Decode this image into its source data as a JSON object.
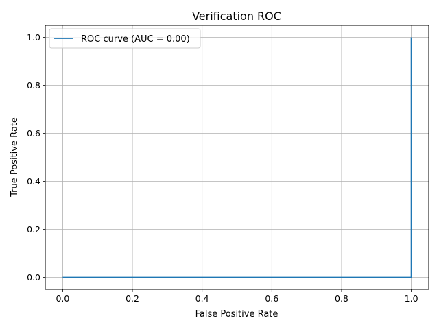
{
  "chart_data": {
    "type": "line",
    "title": "Verification ROC",
    "xlabel": "False Positive Rate",
    "ylabel": "True Positive Rate",
    "xlim": [
      -0.05,
      1.05
    ],
    "ylim": [
      -0.05,
      1.05
    ],
    "xticks": [
      "0.0",
      "0.2",
      "0.4",
      "0.6",
      "0.8",
      "1.0"
    ],
    "yticks": [
      "0.0",
      "0.2",
      "0.4",
      "0.6",
      "0.8",
      "1.0"
    ],
    "grid": true,
    "legend_position": "upper-left",
    "series": [
      {
        "name": "ROC curve (AUC = 0.00)",
        "color": "#1f77b4",
        "x": [
          0.0,
          1.0,
          1.0
        ],
        "y": [
          0.0,
          0.0,
          1.0
        ]
      }
    ]
  }
}
